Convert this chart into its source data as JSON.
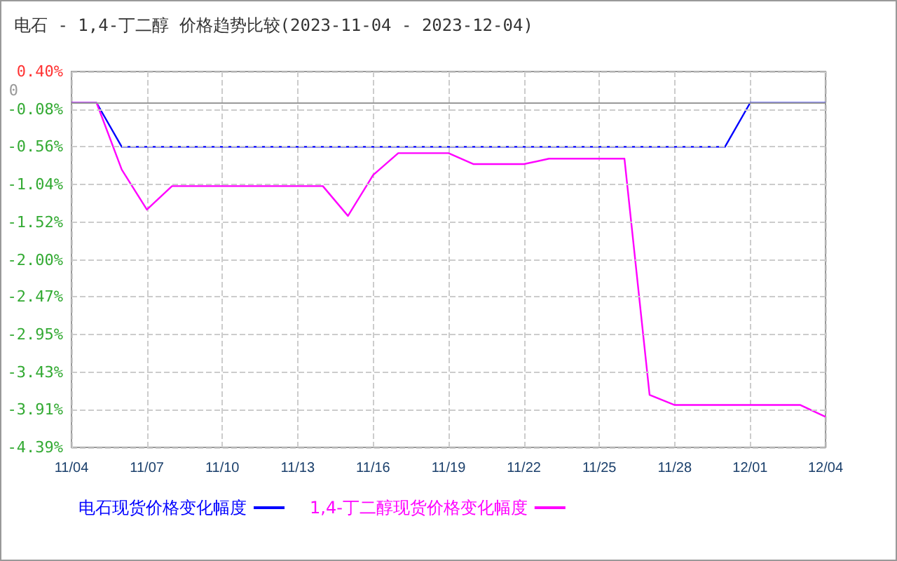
{
  "chart_data": {
    "type": "line",
    "title": "电石 - 1,4-丁二醇 价格趋势比较(2023-11-04 - 2023-12-04)",
    "categories": [
      "11/04",
      null,
      null,
      "11/07",
      null,
      null,
      "11/10",
      null,
      null,
      "11/13",
      null,
      null,
      "11/16",
      null,
      null,
      "11/19",
      null,
      null,
      "11/22",
      null,
      null,
      "11/25",
      null,
      null,
      "11/28",
      null,
      null,
      "12/01",
      null,
      null,
      "12/04"
    ],
    "series": [
      {
        "name": "电石现货价格变化幅度",
        "color": "#0000ff",
        "values": [
          0,
          0,
          -0.56,
          -0.56,
          -0.56,
          -0.56,
          -0.56,
          -0.56,
          -0.56,
          -0.56,
          -0.56,
          -0.56,
          -0.56,
          -0.56,
          -0.56,
          -0.56,
          -0.56,
          -0.56,
          -0.56,
          -0.56,
          -0.56,
          -0.56,
          -0.56,
          -0.56,
          -0.56,
          -0.56,
          -0.56,
          0,
          0,
          0,
          0
        ]
      },
      {
        "name": "1,4-丁二醇现货价格变化幅度",
        "color": "#ff00ff",
        "values": [
          0,
          0,
          -0.85,
          -1.36,
          -1.06,
          -1.06,
          -1.06,
          -1.06,
          -1.06,
          -1.06,
          -1.06,
          -1.44,
          -0.92,
          -0.64,
          -0.64,
          -0.64,
          -0.78,
          -0.78,
          -0.78,
          -0.71,
          -0.71,
          -0.71,
          -0.71,
          -3.72,
          -3.85,
          -3.85,
          -3.85,
          -3.85,
          -3.85,
          -3.85,
          -4.0
        ]
      }
    ],
    "ylim": [
      -4.39,
      0.4
    ],
    "yticks": [
      {
        "value": 0.4,
        "label": "0.40%"
      },
      {
        "value": -0.08,
        "label": "-0.08%"
      },
      {
        "value": -0.56,
        "label": "-0.56%"
      },
      {
        "value": -1.04,
        "label": "-1.04%"
      },
      {
        "value": -1.52,
        "label": "-1.52%"
      },
      {
        "value": -2.0,
        "label": "-2.00%"
      },
      {
        "value": -2.47,
        "label": "-2.47%"
      },
      {
        "value": -2.95,
        "label": "-2.95%"
      },
      {
        "value": -3.43,
        "label": "-3.43%"
      },
      {
        "value": -3.91,
        "label": "-3.91%"
      },
      {
        "value": -4.39,
        "label": "-4.39%"
      }
    ],
    "ref_lines": [
      {
        "axis": "y",
        "value": 0,
        "label": "0",
        "color": "#999999"
      }
    ],
    "grid": true,
    "legend": "bottom",
    "marker": "none",
    "line_style": "solid"
  }
}
